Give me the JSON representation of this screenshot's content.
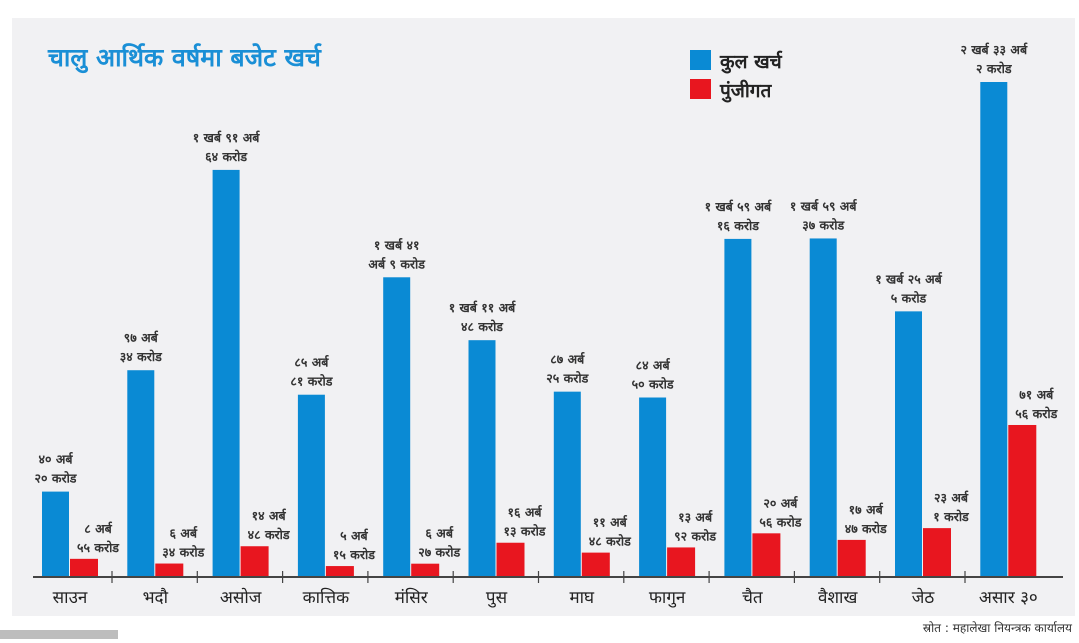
{
  "chart_data": {
    "type": "bar",
    "title": "चालु आर्थिक वर्षमा बजेट खर्च",
    "source": "स्रोत : महालेखा नियन्त्रक कार्यालय",
    "unit": "अर्ब",
    "categories": [
      "साउन",
      "भदौ",
      "असोज",
      "कात्तिक",
      "मंसिर",
      "पुस",
      "माघ",
      "फागुन",
      "चैत",
      "वैशाख",
      "जेठ",
      "असार ३०"
    ],
    "series": [
      {
        "name": "कुल खर्च",
        "color": "#0a8ad4",
        "values": [
          40.2,
          97.34,
          191.64,
          85.81,
          141.09,
          111.48,
          87.25,
          84.5,
          159.16,
          159.37,
          125.05,
          233.02
        ],
        "labels": [
          [
            "४० अर्ब",
            "२० करोड"
          ],
          [
            "९७ अर्ब",
            "३४ करोड"
          ],
          [
            "१ खर्ब ९१ अर्ब",
            "६४ करोड"
          ],
          [
            "८५ अर्ब",
            "८१ करोड"
          ],
          [
            "१ खर्ब ४१",
            "अर्ब ९ करोड"
          ],
          [
            "१ खर्ब ११ अर्ब",
            "४८ करोड"
          ],
          [
            "८७ अर्ब",
            "२५ करोड"
          ],
          [
            "८४ अर्ब",
            "५० करोड"
          ],
          [
            "१ खर्ब ५९ अर्ब",
            "१६ करोड"
          ],
          [
            "१ खर्ब ५९ अर्ब",
            "३७ करोड"
          ],
          [
            "१ खर्ब २५ अर्ब",
            "५ करोड"
          ],
          [
            "२ खर्ब ३३ अर्ब",
            "२ करोड"
          ]
        ]
      },
      {
        "name": "पुंजीगत",
        "color": "#e8161f",
        "values": [
          8.55,
          6.34,
          14.48,
          5.15,
          6.27,
          16.13,
          11.48,
          13.92,
          20.56,
          17.47,
          23.01,
          71.56
        ],
        "labels": [
          [
            "८ अर्ब",
            "५५ करोड"
          ],
          [
            "६ अर्ब",
            "३४ करोड"
          ],
          [
            "१४ अर्ब",
            "४८ करोड"
          ],
          [
            "५ अर्ब",
            "१५ करोड"
          ],
          [
            "६ अर्ब",
            "२७ करोड"
          ],
          [
            "१६ अर्ब",
            "१३ करोड"
          ],
          [
            "११ अर्ब",
            "४८ करोड"
          ],
          [
            "१३ अर्ब",
            "९२ करोड"
          ],
          [
            "२० अर्ब",
            "५६ करोड"
          ],
          [
            "१७ अर्ब",
            "४७ करोड"
          ],
          [
            "२३ अर्ब",
            "१ करोड"
          ],
          [
            "७१ अर्ब",
            "५६ करोड"
          ]
        ]
      }
    ],
    "ylim": [
      0,
      240
    ],
    "grid": false,
    "legend": "top-right"
  }
}
